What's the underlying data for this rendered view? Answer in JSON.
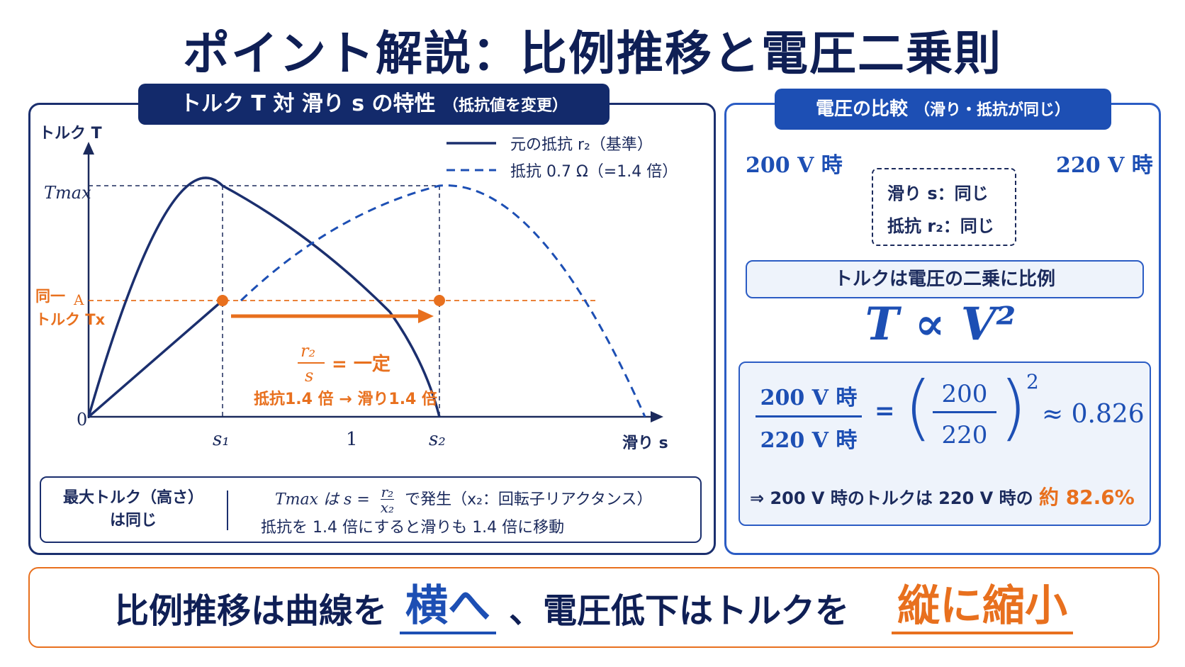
{
  "title": "ポイント解説：比例推移と電圧二乗則",
  "left_panel": {
    "tab_main": "トルク T 対 滑り s の特性",
    "tab_sub": "（抵抗値を変更）",
    "y_axis_label": "トルク T",
    "x_axis_label": "滑り s",
    "legend_solid": "元の抵抗 r₂（基準）",
    "legend_dashed": "抵抗 0.7 Ω（=1.4 倍）",
    "tmax_label": "Tmax",
    "tx_label_1": "同一",
    "tx_label_2": "トルク Tx",
    "tx_marker": "A",
    "origin_label": "0",
    "s1_label": "s₁",
    "one_label": "1",
    "s2_label": "s₂",
    "ratio_num": "r₂",
    "ratio_den": "s",
    "ratio_eq": "= 一定",
    "shift_note": "抵抗1.4 倍 → 滑り1.4 倍",
    "info_left_1": "最大トルク（高さ）",
    "info_left_2": "は同じ",
    "info_line1_a": "Tmax は s =",
    "info_line1_num": "r₂",
    "info_line1_den": "x₂",
    "info_line1_b": "で発生（x₂：回転子リアクタンス）",
    "info_line2": "抵抗を 1.4 倍にすると滑りも 1.4 倍に移動"
  },
  "right_panel": {
    "tab_main": "電圧の比較",
    "tab_sub": "（滑り・抵抗が同じ）",
    "volt_left": "200 V 時",
    "volt_right": "220 V 時",
    "cond_1": "滑り s：同じ",
    "cond_2": "抵抗 r₂：同じ",
    "prop_label": "トルクは電圧の二乗に比例",
    "formula": "T ∝ V²",
    "ratio_num": "200 V 時",
    "ratio_den": "220 V 時",
    "eq": "=",
    "frac_num": "200",
    "frac_den": "220",
    "power": "2",
    "approx": "≈ 0.826",
    "conclusion_a": "⇒ 200 V 時のトルクは 220 V 時の",
    "conclusion_b": "約 82.6%"
  },
  "bottom": {
    "part1": "比例推移は曲線を",
    "hl1": "横へ",
    "part2": "、電圧低下はトルクを",
    "hl2": "縦に縮小"
  },
  "colors": {
    "navy": "#132a6b",
    "blue": "#1d4fb4",
    "orange": "#e8701e"
  }
}
